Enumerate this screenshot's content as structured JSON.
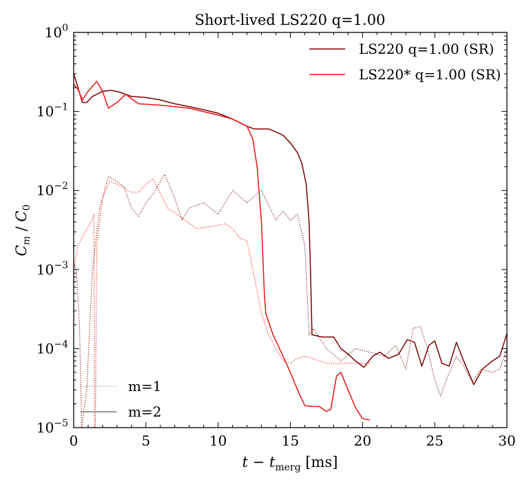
{
  "chart_data": {
    "type": "line",
    "title": "Short-lived LS220 q=1.00",
    "xlabel": "t − t_merg [ms]",
    "ylabel": "C_m / C_0",
    "xlim": [
      0,
      30
    ],
    "ylim": [
      1e-05,
      1
    ],
    "yscale": "log",
    "grid": false,
    "x_ticks": [
      0,
      5,
      10,
      15,
      20,
      25,
      30
    ],
    "x_tick_labels": [
      "0",
      "5",
      "10",
      "15",
      "20",
      "25",
      "30"
    ],
    "y_ticks": [
      1e-05,
      0.0001,
      0.001,
      0.01,
      0.1,
      1
    ],
    "y_tick_labels": [
      {
        "base": "10",
        "exp": "−5"
      },
      {
        "base": "10",
        "exp": "−4"
      },
      {
        "base": "10",
        "exp": "−3"
      },
      {
        "base": "10",
        "exp": "−2"
      },
      {
        "base": "10",
        "exp": "−1"
      },
      {
        "base": "10",
        "exp": "0"
      }
    ],
    "legend_series": {
      "placement": "top-right",
      "entries": [
        {
          "label": "LS220 q=1.00 (SR)",
          "color": "#7a0000"
        },
        {
          "label": "LS220* q=1.00 (SR)",
          "color": "#ee1111"
        }
      ]
    },
    "legend_modes": {
      "placement": "bottom-left",
      "entries": [
        {
          "label": "m=1",
          "style": "dotted",
          "color": "#777777"
        },
        {
          "label": "m=2",
          "style": "solid",
          "color": "#777777"
        }
      ]
    },
    "series": [
      {
        "name": "LS220 q=1.00 (SR)",
        "mode": "m=2",
        "style": "solid",
        "color": "#7a0000",
        "points": [
          [
            0,
            0.3
          ],
          [
            0.3,
            0.2
          ],
          [
            0.6,
            0.13
          ],
          [
            0.9,
            0.13
          ],
          [
            1.3,
            0.155
          ],
          [
            2,
            0.18
          ],
          [
            2.6,
            0.185
          ],
          [
            3.2,
            0.175
          ],
          [
            4,
            0.155
          ],
          [
            5,
            0.15
          ],
          [
            6,
            0.14
          ],
          [
            7,
            0.125
          ],
          [
            8,
            0.115
          ],
          [
            9,
            0.105
          ],
          [
            10,
            0.095
          ],
          [
            11,
            0.08
          ],
          [
            12,
            0.065
          ],
          [
            12.5,
            0.06
          ],
          [
            13,
            0.06
          ],
          [
            13.5,
            0.06
          ],
          [
            14,
            0.055
          ],
          [
            14.5,
            0.05
          ],
          [
            15,
            0.04
          ],
          [
            15.5,
            0.03
          ],
          [
            15.8,
            0.022
          ],
          [
            16.1,
            0.012
          ],
          [
            16.3,
            0.004
          ],
          [
            16.4,
            0.0009
          ],
          [
            16.5,
            0.00015
          ],
          [
            17.2,
            0.00014
          ],
          [
            18,
            0.00014
          ],
          [
            18.5,
            0.0001
          ],
          [
            19,
            8.5e-05
          ],
          [
            19.5,
            7e-05
          ],
          [
            20.1,
            5.8e-05
          ],
          [
            20.7,
            8e-05
          ],
          [
            21.2,
            9e-05
          ],
          [
            21.8,
            7.5e-05
          ],
          [
            22.5,
            8.5e-05
          ],
          [
            23.1,
            0.00013
          ],
          [
            23.6,
            0.00012
          ],
          [
            24.1,
            6e-05
          ],
          [
            24.6,
            0.00011
          ],
          [
            25,
            0.000125
          ],
          [
            25.5,
            6.5e-05
          ],
          [
            26,
            6e-05
          ],
          [
            26.5,
            0.00012
          ],
          [
            27,
            7e-05
          ],
          [
            27.7,
            3.5e-05
          ],
          [
            28.3,
            5.5e-05
          ],
          [
            29,
            7e-05
          ],
          [
            29.5,
            8e-05
          ],
          [
            30,
            0.000155
          ]
        ]
      },
      {
        "name": "LS220 q=1.00 (SR)",
        "mode": "m=1",
        "style": "dotted",
        "color": "#7a0000",
        "points": [
          [
            0,
            0.0012
          ],
          [
            0.2,
            0.00095
          ],
          [
            0.4,
            0.0002
          ],
          [
            0.55,
            1e-05
          ],
          [
            0.9,
            3e-05
          ],
          [
            1.3,
            0.001
          ],
          [
            1.8,
            0.006
          ],
          [
            2.4,
            0.015
          ],
          [
            3,
            0.013
          ],
          [
            3.5,
            0.011
          ],
          [
            4,
            0.006
          ],
          [
            4.5,
            0.0047
          ],
          [
            5,
            0.007
          ],
          [
            5.5,
            0.009
          ],
          [
            6.3,
            0.016
          ],
          [
            7,
            0.008
          ],
          [
            7.5,
            0.0042
          ],
          [
            8,
            0.006
          ],
          [
            9,
            0.007
          ],
          [
            10,
            0.005
          ],
          [
            11,
            0.01
          ],
          [
            12,
            0.007
          ],
          [
            13,
            0.01
          ],
          [
            14,
            0.0042
          ],
          [
            14.5,
            0.0055
          ],
          [
            15,
            0.0042
          ],
          [
            15.5,
            0.005
          ],
          [
            16,
            0.002
          ],
          [
            16.3,
            0.00015
          ],
          [
            16.6,
            0.00018
          ],
          [
            17.5,
            0.0001
          ],
          [
            18.5,
            7e-05
          ],
          [
            19.5,
            0.0001
          ],
          [
            20.5,
            9e-05
          ],
          [
            21.5,
            8e-05
          ],
          [
            22.3,
            0.00011
          ],
          [
            23,
            5.5e-05
          ],
          [
            23.5,
            0.00018
          ],
          [
            24,
            0.00019
          ],
          [
            24.5,
            0.0001
          ],
          [
            25,
            4e-05
          ],
          [
            25.4,
            2.5e-05
          ],
          [
            25.8,
            4e-05
          ],
          [
            26.5,
            8e-05
          ],
          [
            27,
            6e-05
          ],
          [
            27.6,
            3.8e-05
          ],
          [
            28.2,
            5.5e-05
          ],
          [
            29,
            5e-05
          ],
          [
            29.5,
            5.5e-05
          ],
          [
            30,
            0.0001
          ]
        ]
      },
      {
        "name": "LS220* q=1.00 (SR)",
        "mode": "m=2",
        "style": "solid",
        "color": "#ee1111",
        "points": [
          [
            0,
            0.22
          ],
          [
            0.3,
            0.19
          ],
          [
            0.6,
            0.14
          ],
          [
            1,
            0.18
          ],
          [
            1.6,
            0.24
          ],
          [
            2,
            0.18
          ],
          [
            2.4,
            0.11
          ],
          [
            3,
            0.13
          ],
          [
            3.6,
            0.165
          ],
          [
            4,
            0.145
          ],
          [
            4.5,
            0.125
          ],
          [
            6,
            0.12
          ],
          [
            8,
            0.11
          ],
          [
            10,
            0.09
          ],
          [
            11,
            0.08
          ],
          [
            12,
            0.065
          ],
          [
            12.4,
            0.045
          ],
          [
            12.7,
            0.02
          ],
          [
            13,
            0.004
          ],
          [
            13.2,
            0.0005
          ],
          [
            13.3,
            0.00028
          ],
          [
            13.8,
            0.00015
          ],
          [
            14.5,
            8e-05
          ],
          [
            15,
            5e-05
          ],
          [
            15.5,
            3e-05
          ],
          [
            16,
            1.9e-05
          ],
          [
            16.5,
            1.85e-05
          ],
          [
            17,
            1.85e-05
          ],
          [
            17.5,
            1.6e-05
          ],
          [
            17.8,
            1.7e-05
          ],
          [
            18.2,
            4.5e-05
          ],
          [
            18.5,
            5e-05
          ],
          [
            19,
            3e-05
          ],
          [
            19.5,
            1.8e-05
          ],
          [
            20,
            1.3e-05
          ],
          [
            20.5,
            1.25e-05
          ]
        ]
      },
      {
        "name": "LS220* q=1.00 (SR)",
        "mode": "m=1",
        "style": "dotted",
        "color": "#ee1111",
        "points": [
          [
            0,
            0.001
          ],
          [
            0.3,
            0.002
          ],
          [
            0.8,
            0.003
          ],
          [
            1.2,
            0.004
          ],
          [
            1.4,
            0.005
          ],
          [
            1.45,
            1e-05
          ],
          [
            1.5,
            1e-05
          ],
          [
            1.6,
            0.002
          ],
          [
            2,
            0.008
          ],
          [
            2.5,
            0.013
          ],
          [
            3,
            0.012
          ],
          [
            4,
            0.0095
          ],
          [
            4.5,
            0.0095
          ],
          [
            5,
            0.012
          ],
          [
            5.5,
            0.014
          ],
          [
            6.5,
            0.006
          ],
          [
            7.5,
            0.0045
          ],
          [
            8.5,
            0.0033
          ],
          [
            9.5,
            0.0035
          ],
          [
            10.5,
            0.0038
          ],
          [
            11,
            0.0033
          ],
          [
            11.5,
            0.0025
          ],
          [
            12,
            0.0023
          ],
          [
            12.5,
            0.0008
          ],
          [
            13,
            0.00028
          ],
          [
            13.5,
            0.00015
          ],
          [
            14,
            0.0001
          ],
          [
            14.5,
            7e-05
          ],
          [
            15,
            6.5e-05
          ],
          [
            15.5,
            7.5e-05
          ],
          [
            16,
            8e-05
          ],
          [
            16.5,
            7.5e-05
          ],
          [
            17.5,
            6.5e-05
          ],
          [
            18.5,
            6.5e-05
          ],
          [
            19.5,
            6.5e-05
          ],
          [
            20.5,
            6.5e-05
          ]
        ]
      }
    ]
  }
}
